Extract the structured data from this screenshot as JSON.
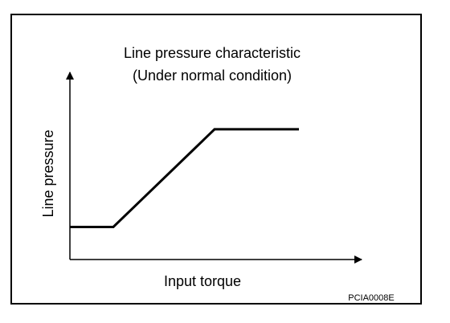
{
  "diagram": {
    "title_line1": "Line pressure characteristic",
    "title_line2": "(Under normal condition)",
    "y_axis_label": "Line pressure",
    "x_axis_label": "Input torque",
    "figure_code": "PCIA0008E"
  },
  "chart_data": {
    "type": "line",
    "title": "Line pressure characteristic (Under normal condition)",
    "xlabel": "Input torque",
    "ylabel": "Line pressure",
    "axis_ticks": "none (qualitative)",
    "series": [
      {
        "x": [
          0,
          0.18,
          0.6,
          0.95
        ],
        "y": [
          0.2,
          0.2,
          0.8,
          0.8
        ]
      }
    ],
    "xlim": [
      0,
      1.2
    ],
    "ylim": [
      0,
      1.15
    ],
    "grid": false,
    "colors": {
      "line": "#000000",
      "axes": "#000000",
      "frame": "#000000"
    }
  }
}
